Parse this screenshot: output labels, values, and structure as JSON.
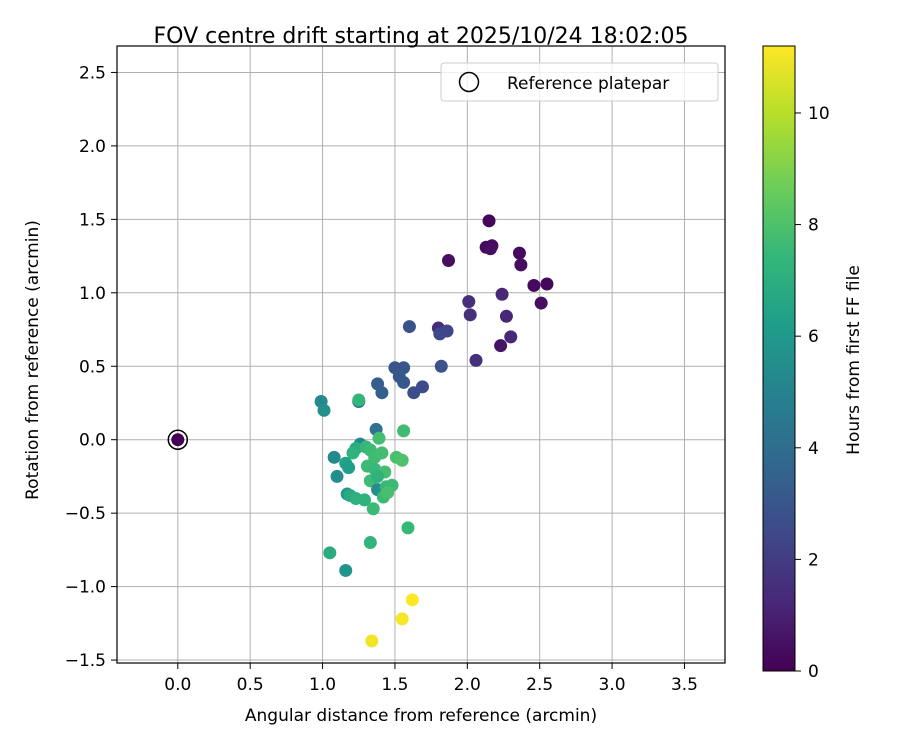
{
  "chart_data": {
    "type": "scatter",
    "title": "FOV centre drift starting at 2025/10/24 18:02:05",
    "xlabel": "Angular distance from reference (arcmin)",
    "ylabel": "Rotation from reference (arcmin)",
    "xlim": [
      -0.42,
      3.78
    ],
    "ylim": [
      -1.52,
      2.68
    ],
    "xticks": [
      0.0,
      0.5,
      1.0,
      1.5,
      2.0,
      2.5,
      3.0,
      3.5
    ],
    "yticks": [
      -1.5,
      -1.0,
      -0.5,
      0.0,
      0.5,
      1.0,
      1.5,
      2.0,
      2.5
    ],
    "xtick_labels": [
      "0.0",
      "0.5",
      "1.0",
      "1.5",
      "2.0",
      "2.5",
      "3.0",
      "3.5"
    ],
    "ytick_labels": [
      "−1.5",
      "−1.0",
      "−0.5",
      "0.0",
      "0.5",
      "1.0",
      "1.5",
      "2.0",
      "2.5"
    ],
    "grid": true,
    "legend": {
      "placement": "top-right",
      "entries": [
        "Reference platepar"
      ]
    },
    "reference_point": {
      "x": 0.0,
      "y": 0.0,
      "hours": 0
    },
    "colorbar": {
      "label": "Hours from first FF file",
      "range": [
        0,
        11.2
      ],
      "ticks": [
        0,
        2,
        4,
        6,
        8,
        10
      ],
      "tick_labels": [
        "0",
        "2",
        "4",
        "6",
        "8",
        "10"
      ],
      "colormap": [
        "#440154",
        "#482878",
        "#3e4989",
        "#31688e",
        "#26828e",
        "#1f9e89",
        "#35b779",
        "#6ece58",
        "#b5de2b",
        "#fde725"
      ]
    },
    "points": [
      {
        "x": 2.15,
        "y": 1.49,
        "h": 0.2
      },
      {
        "x": 2.13,
        "y": 1.31,
        "h": 0.3
      },
      {
        "x": 2.17,
        "y": 1.32,
        "h": 0.3
      },
      {
        "x": 2.16,
        "y": 1.3,
        "h": 0.4
      },
      {
        "x": 1.87,
        "y": 1.22,
        "h": 0.4
      },
      {
        "x": 2.36,
        "y": 1.27,
        "h": 0.3
      },
      {
        "x": 2.37,
        "y": 1.19,
        "h": 0.4
      },
      {
        "x": 2.46,
        "y": 1.05,
        "h": 0.3
      },
      {
        "x": 2.55,
        "y": 1.06,
        "h": 0.2
      },
      {
        "x": 2.51,
        "y": 0.93,
        "h": 0.4
      },
      {
        "x": 2.24,
        "y": 0.99,
        "h": 1.2
      },
      {
        "x": 2.27,
        "y": 0.84,
        "h": 1.2
      },
      {
        "x": 2.3,
        "y": 0.7,
        "h": 1.3
      },
      {
        "x": 2.23,
        "y": 0.64,
        "h": 0.6
      },
      {
        "x": 2.01,
        "y": 0.94,
        "h": 1.5
      },
      {
        "x": 2.02,
        "y": 0.85,
        "h": 1.5
      },
      {
        "x": 1.8,
        "y": 0.76,
        "h": 1.4
      },
      {
        "x": 1.81,
        "y": 0.72,
        "h": 2.5
      },
      {
        "x": 1.86,
        "y": 0.74,
        "h": 2.4
      },
      {
        "x": 2.06,
        "y": 0.54,
        "h": 1.5
      },
      {
        "x": 1.6,
        "y": 0.77,
        "h": 2.8
      },
      {
        "x": 1.82,
        "y": 0.5,
        "h": 2.9
      },
      {
        "x": 1.5,
        "y": 0.49,
        "h": 3.0
      },
      {
        "x": 1.56,
        "y": 0.49,
        "h": 3.0
      },
      {
        "x": 1.53,
        "y": 0.43,
        "h": 3.1
      },
      {
        "x": 1.56,
        "y": 0.39,
        "h": 3.1
      },
      {
        "x": 1.38,
        "y": 0.38,
        "h": 3.3
      },
      {
        "x": 1.41,
        "y": 0.32,
        "h": 3.4
      },
      {
        "x": 1.63,
        "y": 0.32,
        "h": 2.7
      },
      {
        "x": 1.69,
        "y": 0.36,
        "h": 2.6
      },
      {
        "x": 1.25,
        "y": 0.26,
        "h": 4.0
      },
      {
        "x": 1.25,
        "y": 0.27,
        "h": 7.3
      },
      {
        "x": 0.99,
        "y": 0.26,
        "h": 5.3
      },
      {
        "x": 1.01,
        "y": 0.2,
        "h": 5.6
      },
      {
        "x": 1.37,
        "y": 0.07,
        "h": 4.2
      },
      {
        "x": 1.39,
        "y": 0.01,
        "h": 7.8
      },
      {
        "x": 1.56,
        "y": 0.06,
        "h": 7.7
      },
      {
        "x": 1.26,
        "y": -0.03,
        "h": 5.3
      },
      {
        "x": 1.23,
        "y": -0.06,
        "h": 6.9
      },
      {
        "x": 1.21,
        "y": -0.09,
        "h": 7.2
      },
      {
        "x": 1.3,
        "y": -0.05,
        "h": 7.4
      },
      {
        "x": 1.33,
        "y": -0.07,
        "h": 7.6
      },
      {
        "x": 1.36,
        "y": -0.12,
        "h": 7.7
      },
      {
        "x": 1.41,
        "y": -0.09,
        "h": 7.8
      },
      {
        "x": 1.51,
        "y": -0.12,
        "h": 7.9
      },
      {
        "x": 1.55,
        "y": -0.14,
        "h": 8.0
      },
      {
        "x": 1.08,
        "y": -0.12,
        "h": 5.3
      },
      {
        "x": 1.16,
        "y": -0.16,
        "h": 6.4
      },
      {
        "x": 1.18,
        "y": -0.19,
        "h": 6.2
      },
      {
        "x": 1.31,
        "y": -0.18,
        "h": 7.6
      },
      {
        "x": 1.36,
        "y": -0.2,
        "h": 7.5
      },
      {
        "x": 1.43,
        "y": -0.22,
        "h": 7.8
      },
      {
        "x": 1.1,
        "y": -0.25,
        "h": 5.5
      },
      {
        "x": 1.33,
        "y": -0.28,
        "h": 7.7
      },
      {
        "x": 1.38,
        "y": -0.25,
        "h": 7.2
      },
      {
        "x": 1.38,
        "y": -0.34,
        "h": 5.4
      },
      {
        "x": 1.44,
        "y": -0.32,
        "h": 7.5
      },
      {
        "x": 1.48,
        "y": -0.31,
        "h": 7.6
      },
      {
        "x": 1.17,
        "y": -0.37,
        "h": 6.0
      },
      {
        "x": 1.19,
        "y": -0.38,
        "h": 6.8
      },
      {
        "x": 1.23,
        "y": -0.4,
        "h": 7.1
      },
      {
        "x": 1.29,
        "y": -0.41,
        "h": 7.2
      },
      {
        "x": 1.42,
        "y": -0.39,
        "h": 7.6
      },
      {
        "x": 1.45,
        "y": -0.36,
        "h": 7.9
      },
      {
        "x": 1.35,
        "y": -0.47,
        "h": 7.6
      },
      {
        "x": 1.59,
        "y": -0.6,
        "h": 7.5
      },
      {
        "x": 1.33,
        "y": -0.7,
        "h": 7.3
      },
      {
        "x": 1.05,
        "y": -0.77,
        "h": 6.9
      },
      {
        "x": 1.16,
        "y": -0.89,
        "h": 5.8
      },
      {
        "x": 1.62,
        "y": -1.09,
        "h": 11.2
      },
      {
        "x": 1.55,
        "y": -1.22,
        "h": 11.1
      },
      {
        "x": 1.34,
        "y": -1.37,
        "h": 11.0
      }
    ]
  }
}
